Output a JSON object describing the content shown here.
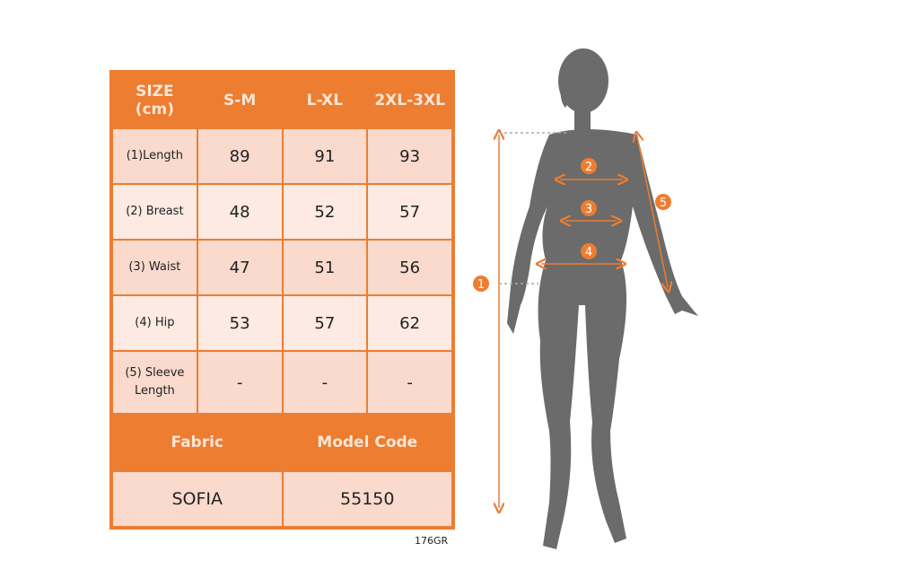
{
  "size_chart": {
    "header": [
      "SIZE\n(cm)",
      "S-M",
      "L-XL",
      "2XL-3XL"
    ],
    "header_size": "SIZE",
    "header_unit": "(cm)",
    "rows": [
      {
        "label": "(1)Length",
        "values": [
          "89",
          "91",
          "93"
        ]
      },
      {
        "label": "(2) Breast",
        "values": [
          "48",
          "52",
          "57"
        ]
      },
      {
        "label": "(3) Waist",
        "values": [
          "47",
          "51",
          "56"
        ]
      },
      {
        "label": "(4) Hip",
        "values": [
          "53",
          "57",
          "62"
        ]
      },
      {
        "label": "(5) Sleeve Length",
        "label_line1": "(5) Sleeve",
        "label_line2": "Length",
        "values": [
          "-",
          "-",
          "-"
        ]
      }
    ],
    "footer_headers": [
      "Fabric",
      "Model Code"
    ],
    "footer_values": [
      "SOFIA",
      "55150"
    ]
  },
  "product_code": "176GR",
  "figure_markers": [
    "1",
    "2",
    "3",
    "4",
    "5"
  ],
  "colors": {
    "accent": "#ed7d31",
    "row_dark": "#f9dacd",
    "row_light": "#fceae3",
    "silhouette": "#6b6b6b"
  }
}
